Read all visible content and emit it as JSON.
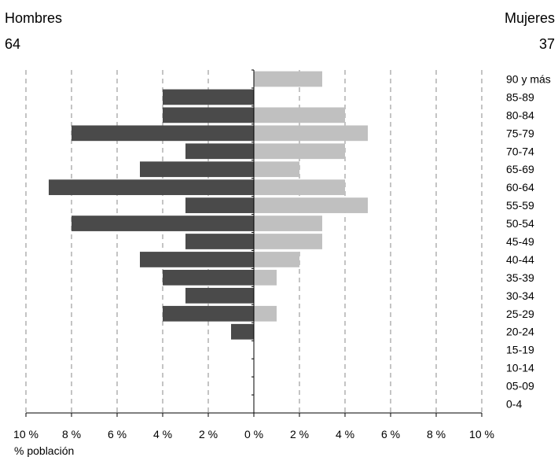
{
  "header": {
    "left_title": "Hombres",
    "left_total": "64",
    "right_title": "Mujeres",
    "right_total": "37"
  },
  "chart_data": {
    "type": "bar",
    "orientation": "horizontal",
    "subtype": "population-pyramid",
    "categories": [
      "90 y más",
      "85-89",
      "80-84",
      "75-79",
      "70-74",
      "65-69",
      "60-64",
      "55-59",
      "50-54",
      "45-49",
      "40-44",
      "35-39",
      "30-34",
      "25-29",
      "20-24",
      "15-19",
      "10-14",
      "05-09",
      "0-4"
    ],
    "series": [
      {
        "name": "Hombres",
        "color": "#4a4a4a",
        "values": [
          0,
          4,
          4,
          8,
          3,
          5,
          9,
          3,
          8,
          3,
          5,
          4,
          3,
          4,
          1,
          0,
          0,
          0,
          0
        ]
      },
      {
        "name": "Mujeres",
        "color": "#c0c0c0",
        "values": [
          3,
          0,
          4,
          5,
          4,
          2,
          4,
          5,
          3,
          3,
          2,
          1,
          0,
          1,
          0,
          0,
          0,
          0,
          0
        ]
      }
    ],
    "xlim": [
      -10,
      10
    ],
    "xticks": [
      -10,
      -8,
      -6,
      -4,
      -2,
      0,
      2,
      4,
      6,
      8,
      10
    ],
    "xtick_labels": [
      "10 %",
      "8 %",
      "6 %",
      "4 %",
      "2 %",
      "0 %",
      "2 %",
      "4 %",
      "6 %",
      "8 %",
      "10 %"
    ],
    "xlabel": "% población",
    "grid": "vertical dashed"
  }
}
